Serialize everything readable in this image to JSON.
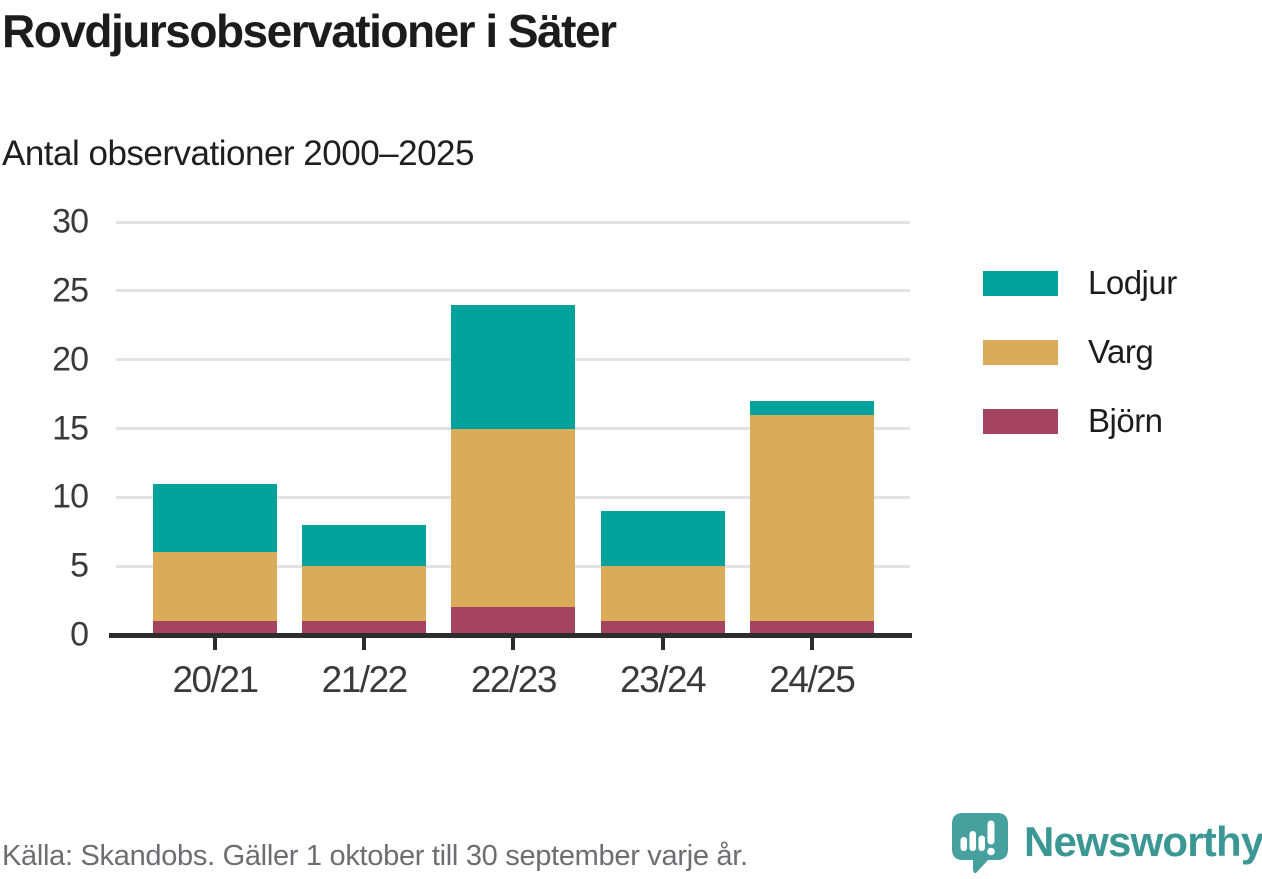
{
  "header": {
    "title": "Rovdjursobservationer i Säter",
    "subtitle": "Antal observationer 2000–2025"
  },
  "chart_data": {
    "type": "bar",
    "stacked": true,
    "title": "Rovdjursobservationer i Säter",
    "subtitle": "Antal observationer 2000–2025",
    "categories": [
      "20/21",
      "21/22",
      "22/23",
      "23/24",
      "24/25"
    ],
    "series": [
      {
        "name": "Björn",
        "color": "#A54460",
        "values": [
          1,
          1,
          2,
          1,
          1
        ]
      },
      {
        "name": "Varg",
        "color": "#DAAB58",
        "values": [
          5,
          4,
          13,
          4,
          15
        ]
      },
      {
        "name": "Lodjur",
        "color": "#00A29B",
        "values": [
          5,
          3,
          9,
          4,
          1
        ]
      }
    ],
    "totals": [
      11,
      8,
      24,
      9,
      17
    ],
    "xlabel": "",
    "ylabel": "Antal observationer",
    "ylim": [
      0,
      30
    ],
    "yticks": [
      0,
      5,
      10,
      15,
      20,
      25,
      30
    ],
    "grid": true,
    "legend_position": "right",
    "legend_order_top_to_bottom": [
      "Lodjur",
      "Varg",
      "Björn"
    ]
  },
  "footer": {
    "source": "Källa: Skandobs. Gäller 1 oktober till 30 september varje år.",
    "brand": "Newsworthy",
    "brand_color": "#3a9793",
    "logo_color": "#45a09e"
  }
}
